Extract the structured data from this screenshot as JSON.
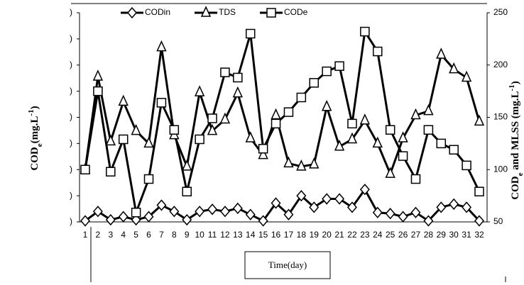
{
  "chart_data": {
    "type": "line",
    "x_label": "Time(day)",
    "y_label": [
      "COD",
      "e",
      "(mg.L",
      "-1",
      ")"
    ],
    "y2_label": [
      "COD",
      "e",
      " and MLSS (mg.L",
      "-1",
      ")"
    ],
    "categories": [
      "1",
      "2",
      "3",
      "4",
      "5",
      "6",
      "7",
      "8",
      "9",
      "10",
      "11",
      "12",
      "13",
      "14",
      "15",
      "16",
      "17",
      "18",
      "19",
      "20",
      "21",
      "22",
      "23",
      "24",
      "25",
      "26",
      "27",
      "28",
      "29",
      "30",
      "31",
      "32"
    ],
    "series": [
      {
        "name": "CODin",
        "color": "#000000",
        "marker": "diamond",
        "axis": "y2",
        "values": [
          51,
          60,
          52,
          55,
          52,
          55,
          66,
          60,
          52,
          60,
          62,
          60,
          63,
          57,
          51,
          68,
          57,
          75,
          64,
          72,
          72,
          64,
          81,
          59,
          58,
          55,
          59,
          51,
          64,
          67,
          64,
          51
        ]
      },
      {
        "name": "TDS",
        "color": "#000000",
        "marker": "triangle",
        "axis": "y2",
        "values": [
          100,
          189,
          127,
          165,
          137,
          125,
          217,
          133,
          103,
          174,
          137,
          148,
          173,
          130,
          114,
          152,
          106,
          103,
          105,
          160,
          122,
          129,
          147,
          125,
          96,
          130,
          152,
          156,
          210,
          196,
          188,
          146
        ]
      },
      {
        "name": "CODe",
        "color": "#000000",
        "marker": "square",
        "axis": "y2",
        "values": [
          100,
          175,
          98,
          129,
          59,
          91,
          164,
          138,
          79,
          129,
          149,
          193,
          188,
          230,
          120,
          144,
          155,
          169,
          183,
          194,
          199,
          144,
          232,
          213,
          138,
          113,
          91,
          138,
          125,
          119,
          104,
          79
        ]
      }
    ],
    "ylim": [
      50,
      250
    ],
    "yticks": [
      {
        "value": 50,
        "label": ")"
      },
      {
        "value": 75,
        "label": ")"
      },
      {
        "value": 100,
        "label": ")"
      },
      {
        "value": 125,
        "label": ")"
      },
      {
        "value": 150,
        "label": ")"
      },
      {
        "value": 175,
        "label": ")"
      },
      {
        "value": 200,
        "label": ")"
      },
      {
        "value": 225,
        "label": ")"
      },
      {
        "value": 250,
        "label": ")"
      }
    ],
    "y2lim": [
      50,
      250
    ],
    "y2ticks": [
      50,
      100,
      150,
      200,
      250
    ],
    "legend": "top"
  }
}
